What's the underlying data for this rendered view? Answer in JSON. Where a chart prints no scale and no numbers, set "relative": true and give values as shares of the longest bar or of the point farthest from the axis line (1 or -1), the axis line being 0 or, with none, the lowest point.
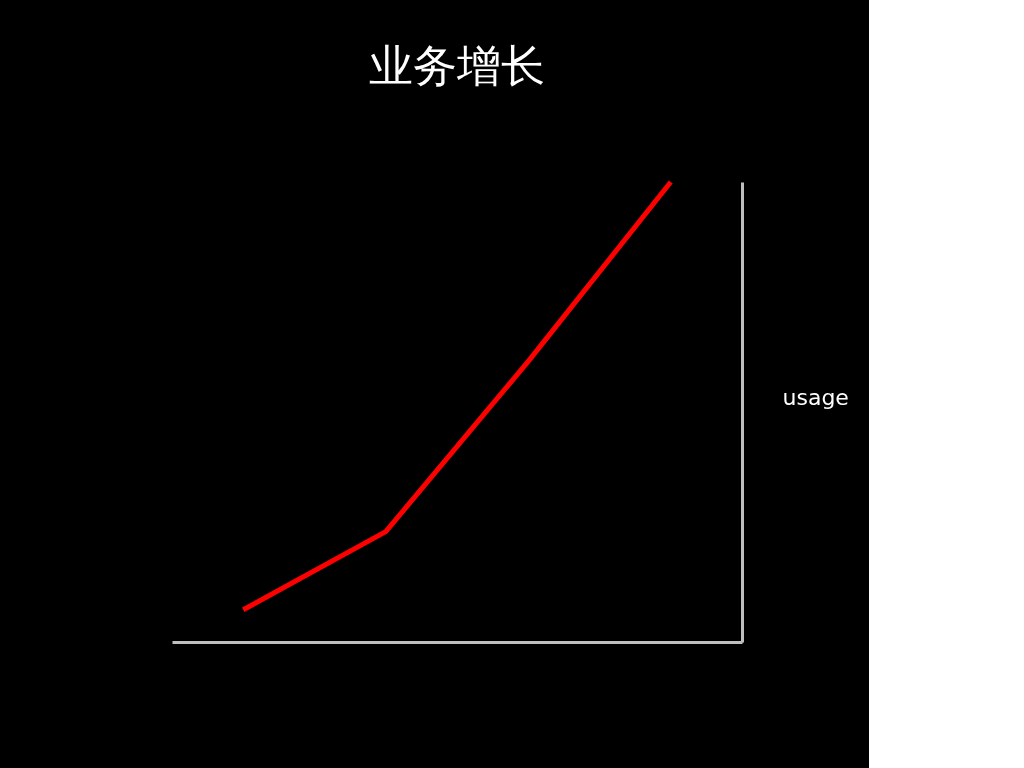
{
  "chart_data": {
    "type": "line",
    "title": "业务增长",
    "ylabel": "usage",
    "relative": true,
    "categories": [
      null,
      null,
      null,
      null
    ],
    "series": [
      {
        "color": "#ff0000",
        "values": [
          0.07,
          0.24,
          0.61,
          1
        ]
      }
    ],
    "marker": "none",
    "line_style": "solid",
    "grid": false
  }
}
